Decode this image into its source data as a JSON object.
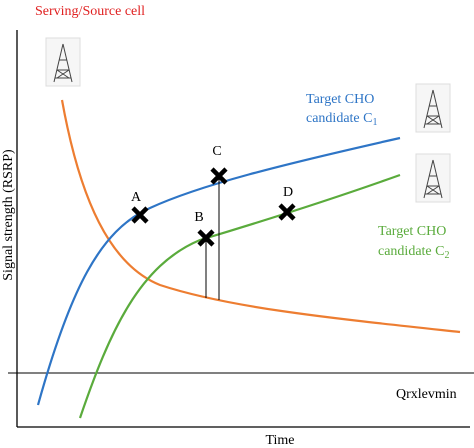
{
  "serving_label": "Serving/Source cell",
  "target_c1": {
    "line1": "Target CHO",
    "line2": "candidate C",
    "sub": "1"
  },
  "target_c2": {
    "line1": "Target CHO",
    "line2": "candidate C",
    "sub": "2"
  },
  "y_axis_label": "Signal strength (RSRP)",
  "x_axis_label": "Time",
  "threshold_label": "Qrxlevmin",
  "points": [
    "A",
    "B",
    "C",
    "D"
  ]
}
